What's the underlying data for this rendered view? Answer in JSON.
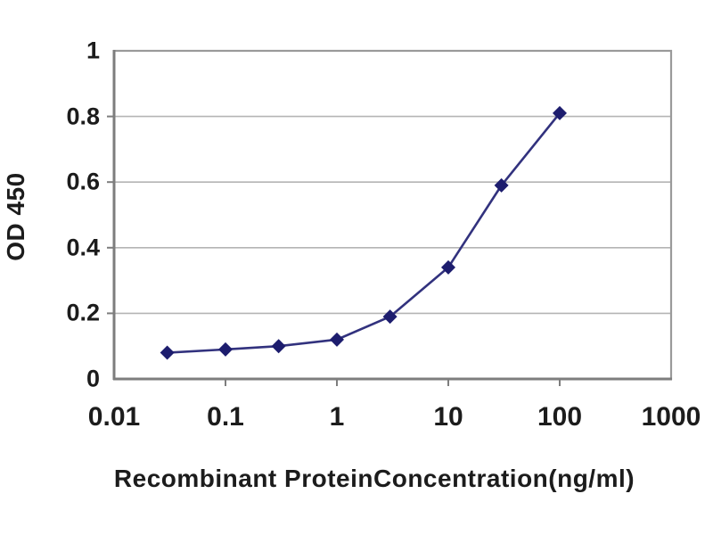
{
  "chart_data": {
    "type": "line",
    "title": "",
    "xlabel": "Recombinant ProteinConcentration(ng/ml)",
    "ylabel": "OD 450",
    "x_scale": "log",
    "xlim": [
      0.01,
      1000
    ],
    "ylim": [
      0,
      1
    ],
    "x_ticks": [
      0.01,
      0.1,
      1,
      10,
      100,
      1000
    ],
    "x_tick_labels": [
      "0.01",
      "0.1",
      "1",
      "10",
      "100",
      "1000"
    ],
    "y_ticks": [
      0,
      0.2,
      0.4,
      0.6,
      0.8,
      1
    ],
    "y_tick_labels": [
      "0",
      "0.2",
      "0.4",
      "0.6",
      "0.8",
      "1"
    ],
    "grid": "horizontal",
    "legend": "none",
    "series": [
      {
        "name": "OD450",
        "marker": "diamond",
        "line_color": "#32327e",
        "marker_color": "#1d1d6e",
        "x": [
          0.03,
          0.1,
          0.3,
          1,
          3,
          10,
          30,
          100
        ],
        "y": [
          0.08,
          0.09,
          0.1,
          0.12,
          0.19,
          0.34,
          0.59,
          0.81
        ]
      }
    ],
    "colors": {
      "background": "#ffffff",
      "gridline": "#b4b4b4",
      "plot_border": "#9a9a9a",
      "axis_line": "#7d7d7d",
      "text": "#1c1c1c"
    }
  }
}
